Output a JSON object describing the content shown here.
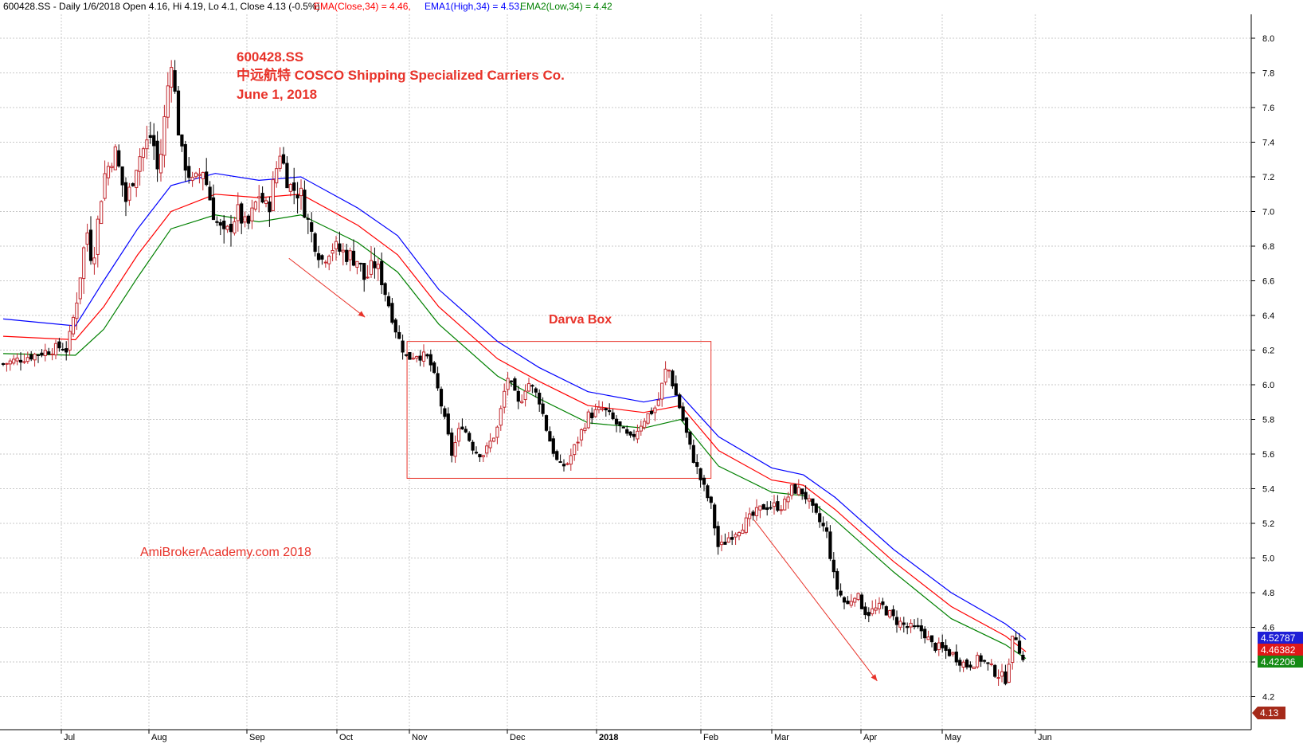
{
  "header": {
    "info": "600428.SS - Daily 1/6/2018 Open 4.16, Hi 4.19, Lo 4.1, Close 4.13 (-0.5%)",
    "ema_close": "EMA(Close,34) = 4.46,",
    "ema_high": "EMA1(High,34) = 4.53,",
    "ema_low": "EMA2(Low,34) = 4.42"
  },
  "annotations": {
    "ticker": "600428.SS",
    "company": "中远航特 COSCO Shipping Specialized Carriers Co.",
    "date": "June 1, 2018",
    "box_label": "Darva Box",
    "watermark": "AmiBrokerAcademy.com  2018"
  },
  "price_tags": {
    "ema_high": "4.52787",
    "ema_close": "4.46382",
    "ema_low": "4.42206",
    "close": "4.13"
  },
  "colors": {
    "ema_close": "#ff0000",
    "ema_high": "#0000ff",
    "ema_low": "#008000",
    "up_candle": "#c1272d",
    "down_candle": "#000000",
    "annotation": "#e8332a",
    "box": "#e8332a",
    "grid": "#c8c8c8"
  },
  "chart_data": {
    "type": "candlestick",
    "title": "600428.SS",
    "x_tick_labels": [
      "Jul",
      "Aug",
      "Sep",
      "Oct",
      "Nov",
      "Dec",
      "2018",
      "Feb",
      "Mar",
      "Apr",
      "May",
      "Jun"
    ],
    "y_ticks": [
      4.2,
      4.4,
      4.6,
      4.8,
      5.0,
      5.2,
      5.4,
      5.6,
      5.8,
      6.0,
      6.2,
      6.4,
      6.6,
      6.8,
      7.0,
      7.2,
      7.4,
      7.6,
      7.8,
      8.0
    ],
    "ylim": [
      4.07,
      8.0
    ],
    "grid": true,
    "close_path": [
      [
        "Jun 20",
        6.12
      ],
      [
        "Jun 26",
        6.18
      ],
      [
        "Jun 30",
        6.22
      ],
      [
        "Jul 3",
        6.2
      ],
      [
        "Jul 6",
        6.45
      ],
      [
        "Jul 10",
        6.9
      ],
      [
        "Jul 12",
        6.7
      ],
      [
        "Jul 16",
        7.2
      ],
      [
        "Jul 20",
        7.35
      ],
      [
        "Jul 24",
        7.05
      ],
      [
        "Jul 28",
        7.3
      ],
      [
        "Aug 2",
        7.45
      ],
      [
        "Aug 4",
        7.2
      ],
      [
        "Aug 8",
        7.9
      ],
      [
        "Aug 11",
        7.35
      ],
      [
        "Aug 15",
        7.15
      ],
      [
        "Aug 18",
        7.25
      ],
      [
        "Aug 22",
        6.95
      ],
      [
        "Aug 25",
        6.85
      ],
      [
        "Aug 29",
        7.0
      ],
      [
        "Sep 1",
        6.9
      ],
      [
        "Sep 5",
        7.1
      ],
      [
        "Sep 8",
        7.0
      ],
      [
        "Sep 12",
        7.35
      ],
      [
        "Sep 15",
        7.15
      ],
      [
        "Sep 19",
        7.1
      ],
      [
        "Sep 22",
        6.9
      ],
      [
        "Sep 26",
        6.72
      ],
      [
        "Sep 29",
        6.8
      ],
      [
        "Oct 10",
        6.72
      ],
      [
        "Oct 13",
        6.6
      ],
      [
        "Oct 17",
        6.7
      ],
      [
        "Oct 20",
        6.62
      ],
      [
        "Oct 24",
        6.42
      ],
      [
        "Oct 27",
        6.28
      ],
      [
        "Oct 31",
        6.15
      ],
      [
        "Nov 3",
        6.18
      ],
      [
        "Nov 7",
        6.15
      ],
      [
        "Nov 10",
        5.95
      ],
      [
        "Nov 14",
        5.6
      ],
      [
        "Nov 17",
        5.78
      ],
      [
        "Nov 21",
        5.62
      ],
      [
        "Nov 24",
        5.6
      ],
      [
        "Nov 28",
        5.75
      ],
      [
        "Dec 1",
        6.05
      ],
      [
        "Dec 5",
        5.88
      ],
      [
        "Dec 8",
        6.02
      ],
      [
        "Dec 12",
        5.92
      ],
      [
        "Dec 15",
        5.72
      ],
      [
        "Dec 19",
        5.52
      ],
      [
        "Dec 22",
        5.55
      ],
      [
        "Dec 26",
        5.7
      ],
      [
        "Dec 29",
        5.82
      ],
      [
        "Jan 3",
        5.86
      ],
      [
        "Jan 8",
        5.75
      ],
      [
        "Jan 11",
        5.68
      ],
      [
        "Jan 15",
        5.8
      ],
      [
        "Jan 19",
        5.88
      ],
      [
        "Jan 22",
        6.12
      ],
      [
        "Jan 24",
        5.98
      ],
      [
        "Jan 26",
        5.85
      ],
      [
        "Jan 29",
        5.62
      ],
      [
        "Feb 1",
        5.45
      ],
      [
        "Feb 5",
        5.3
      ],
      [
        "Feb 8",
        5.05
      ],
      [
        "Feb 12",
        5.12
      ],
      [
        "Feb 26",
        5.3
      ],
      [
        "Mar 1",
        5.3
      ],
      [
        "Mar 5",
        5.3
      ],
      [
        "Mar 8",
        5.4
      ],
      [
        "Mar 12",
        5.38
      ],
      [
        "Mar 16",
        5.25
      ],
      [
        "Mar 20",
        5.15
      ],
      [
        "Mar 23",
        4.85
      ],
      [
        "Mar 27",
        4.72
      ],
      [
        "Mar 30",
        4.8
      ],
      [
        "Apr 3",
        4.68
      ],
      [
        "Apr 9",
        4.72
      ],
      [
        "Apr 13",
        4.65
      ],
      [
        "Apr 18",
        4.6
      ],
      [
        "Apr 24",
        4.58
      ],
      [
        "Apr 27",
        4.5
      ],
      [
        "May 4",
        4.45
      ],
      [
        "May 9",
        4.38
      ],
      [
        "May 14",
        4.42
      ],
      [
        "May 18",
        4.35
      ],
      [
        "May 22",
        4.3
      ],
      [
        "May 25",
        4.58
      ],
      [
        "May 28",
        4.4
      ],
      [
        "May 31",
        4.22
      ],
      [
        "Jun 1",
        4.13
      ]
    ],
    "ema_close_path": [
      [
        "Jun 20",
        6.28
      ],
      [
        "Jul 6",
        6.26
      ],
      [
        "Jul 16",
        6.45
      ],
      [
        "Jul 28",
        6.75
      ],
      [
        "Aug 8",
        7.0
      ],
      [
        "Aug 22",
        7.1
      ],
      [
        "Sep 5",
        7.08
      ],
      [
        "Sep 19",
        7.1
      ],
      [
        "Oct 10",
        6.92
      ],
      [
        "Oct 27",
        6.75
      ],
      [
        "Nov 10",
        6.45
      ],
      [
        "Nov 28",
        6.15
      ],
      [
        "Dec 12",
        6.02
      ],
      [
        "Dec 29",
        5.88
      ],
      [
        "Jan 15",
        5.84
      ],
      [
        "Jan 26",
        5.88
      ],
      [
        "Feb 8",
        5.62
      ],
      [
        "Mar 1",
        5.45
      ],
      [
        "Mar 12",
        5.42
      ],
      [
        "Mar 23",
        5.28
      ],
      [
        "Apr 13",
        4.98
      ],
      [
        "May 4",
        4.72
      ],
      [
        "May 22",
        4.55
      ],
      [
        "Jun 1",
        4.46
      ]
    ],
    "ema_high_path": [
      [
        "Jun 20",
        6.38
      ],
      [
        "Jul 6",
        6.34
      ],
      [
        "Jul 16",
        6.6
      ],
      [
        "Jul 28",
        6.9
      ],
      [
        "Aug 8",
        7.15
      ],
      [
        "Aug 22",
        7.22
      ],
      [
        "Sep 5",
        7.18
      ],
      [
        "Sep 19",
        7.2
      ],
      [
        "Oct 10",
        7.02
      ],
      [
        "Oct 27",
        6.86
      ],
      [
        "Nov 10",
        6.55
      ],
      [
        "Nov 28",
        6.25
      ],
      [
        "Dec 12",
        6.1
      ],
      [
        "Dec 29",
        5.96
      ],
      [
        "Jan 15",
        5.9
      ],
      [
        "Jan 26",
        5.94
      ],
      [
        "Feb 8",
        5.7
      ],
      [
        "Mar 1",
        5.52
      ],
      [
        "Mar 12",
        5.48
      ],
      [
        "Mar 23",
        5.35
      ],
      [
        "Apr 13",
        5.05
      ],
      [
        "May 4",
        4.8
      ],
      [
        "May 22",
        4.62
      ],
      [
        "Jun 1",
        4.53
      ]
    ],
    "ema_low_path": [
      [
        "Jun 20",
        6.18
      ],
      [
        "Jul 6",
        6.17
      ],
      [
        "Jul 16",
        6.32
      ],
      [
        "Jul 28",
        6.62
      ],
      [
        "Aug 8",
        6.9
      ],
      [
        "Aug 22",
        6.98
      ],
      [
        "Sep 5",
        6.94
      ],
      [
        "Sep 19",
        6.98
      ],
      [
        "Oct 10",
        6.82
      ],
      [
        "Oct 27",
        6.65
      ],
      [
        "Nov 10",
        6.35
      ],
      [
        "Nov 28",
        6.05
      ],
      [
        "Dec 12",
        5.92
      ],
      [
        "Dec 29",
        5.78
      ],
      [
        "Jan 15",
        5.75
      ],
      [
        "Jan 26",
        5.8
      ],
      [
        "Feb 8",
        5.53
      ],
      [
        "Mar 1",
        5.38
      ],
      [
        "Mar 12",
        5.36
      ],
      [
        "Mar 23",
        5.22
      ],
      [
        "Apr 13",
        4.92
      ],
      [
        "May 4",
        4.65
      ],
      [
        "May 22",
        4.5
      ],
      [
        "Jun 1",
        4.42
      ]
    ],
    "darvas_box": {
      "from": "Oct 31",
      "to": "Feb 5",
      "top": 6.25,
      "bottom": 5.46
    },
    "trend_arrows": [
      {
        "from": [
          "Sep 15",
          6.73
        ],
        "to": [
          "Oct 13",
          6.39
        ]
      },
      {
        "from": [
          "Feb 22",
          5.22
        ],
        "to": [
          "Apr 7",
          4.29
        ]
      }
    ]
  }
}
